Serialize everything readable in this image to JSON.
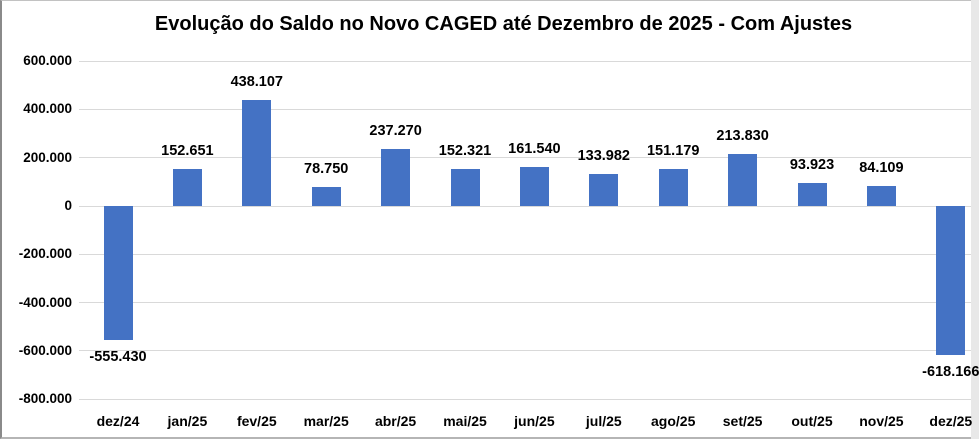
{
  "chart_data": {
    "type": "bar",
    "title": "Evolução do Saldo no Novo CAGED até Dezembro de 2025 - Com Ajustes",
    "categories": [
      "dez/24",
      "jan/25",
      "fev/25",
      "mar/25",
      "abr/25",
      "mai/25",
      "jun/25",
      "jul/25",
      "ago/25",
      "set/25",
      "out/25",
      "nov/25",
      "dez/25"
    ],
    "values": [
      -555430,
      152651,
      438107,
      78750,
      237270,
      152321,
      161540,
      133982,
      151179,
      213830,
      93923,
      84109,
      -618166
    ],
    "value_labels": [
      "-555.430",
      "152.651",
      "438.107",
      "78.750",
      "237.270",
      "152.321",
      "161.540",
      "133.982",
      "151.179",
      "213.830",
      "93.923",
      "84.109",
      "-618.166"
    ],
    "xlabel": "",
    "ylabel": "",
    "ylim": [
      -800000,
      600000
    ],
    "ytick_values": [
      600000,
      400000,
      200000,
      0,
      -200000,
      -400000,
      -600000,
      -800000
    ],
    "ytick_labels": [
      "600.000",
      "400.000",
      "200.000",
      "0",
      "-200.000",
      "-400.000",
      "-600.000",
      "-800.000"
    ],
    "grid": true,
    "legend": false,
    "bar_color": "#4472C4",
    "gridline_color": "#D9D9D9",
    "text_color": "#000000",
    "background_color": "#FFFFFF"
  }
}
